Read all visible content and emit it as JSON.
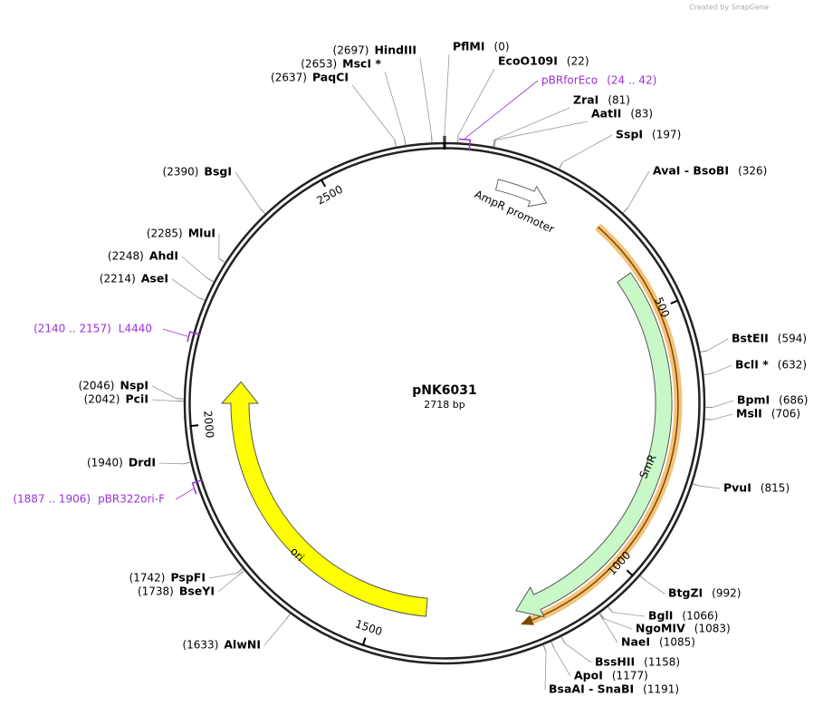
{
  "credit": "Created by SnapGene",
  "plasmid": {
    "name": "pNK6031",
    "length": {
      "value": 2718,
      "label": "2718 bp"
    }
  },
  "sites": [
    {
      "name": "HindIII",
      "position": 2697,
      "position_label": "(2697)"
    },
    {
      "name": "MscI *",
      "position": 2653,
      "position_label": "(2653)"
    },
    {
      "name": "PaqCI",
      "position": 2637,
      "position_label": "(2637)"
    },
    {
      "name": "BsgI",
      "position": 2390,
      "position_label": "(2390)"
    },
    {
      "name": "MluI",
      "position": 2285,
      "position_label": "(2285)"
    },
    {
      "name": "AhdI",
      "position": 2248,
      "position_label": "(2248)"
    },
    {
      "name": "AseI",
      "position": 2214,
      "position_label": "(2214)"
    },
    {
      "name": "NspI",
      "position": 2046,
      "position_label": "(2046)"
    },
    {
      "name": "PciI",
      "position": 2042,
      "position_label": "(2042)"
    },
    {
      "name": "DrdI",
      "position": 1940,
      "position_label": "(1940)"
    },
    {
      "name": "PspFI",
      "position": 1742,
      "position_label": "(1742)"
    },
    {
      "name": "BseYI",
      "position": 1738,
      "position_label": "(1738)"
    },
    {
      "name": "AlwNI",
      "position": 1633,
      "position_label": "(1633)"
    },
    {
      "name": "PflMI",
      "position": 0,
      "position_label": "(0)"
    },
    {
      "name": "EcoO109I",
      "position": 22,
      "position_label": "(22)"
    },
    {
      "name": "ZraI",
      "position": 81,
      "position_label": "(81)"
    },
    {
      "name": "AatII",
      "position": 83,
      "position_label": "(83)"
    },
    {
      "name": "SspI",
      "position": 197,
      "position_label": "(197)"
    },
    {
      "name": "AvaI - BsoBI",
      "position": 326,
      "position_label": "(326)"
    },
    {
      "name": "BstEII",
      "position": 594,
      "position_label": "(594)"
    },
    {
      "name": "BclI *",
      "position": 632,
      "position_label": "(632)"
    },
    {
      "name": "BpmI",
      "position": 686,
      "position_label": "(686)"
    },
    {
      "name": "MslI",
      "position": 706,
      "position_label": "(706)"
    },
    {
      "name": "PvuI",
      "position": 815,
      "position_label": "(815)"
    },
    {
      "name": "BtgZI",
      "position": 992,
      "position_label": "(992)"
    },
    {
      "name": "BglI",
      "position": 1066,
      "position_label": "(1066)"
    },
    {
      "name": "NgoMIV",
      "position": 1083,
      "position_label": "(1083)"
    },
    {
      "name": "NaeI",
      "position": 1085,
      "position_label": "(1085)"
    },
    {
      "name": "BssHII",
      "position": 1158,
      "position_label": "(1158)"
    },
    {
      "name": "ApoI",
      "position": 1177,
      "position_label": "(1177)"
    },
    {
      "name": "BsaAI - SnaBI",
      "position": 1191,
      "position_label": "(1191)"
    }
  ],
  "primers": [
    {
      "name": "pBRforEco",
      "range": "(24 .. 42)",
      "start": 24,
      "end": 42
    },
    {
      "name": "L4440",
      "range": "(2140 .. 2157)",
      "start": 2140,
      "end": 2157
    },
    {
      "name": "pBR322ori-F",
      "range": "(1887 .. 1906)",
      "start": 1887,
      "end": 1906
    }
  ],
  "features": [
    {
      "name": "AmpR promoter"
    },
    {
      "name": "SmR"
    },
    {
      "name": "ori"
    }
  ],
  "ruler": [
    500,
    1000,
    1500,
    2000,
    2500
  ]
}
